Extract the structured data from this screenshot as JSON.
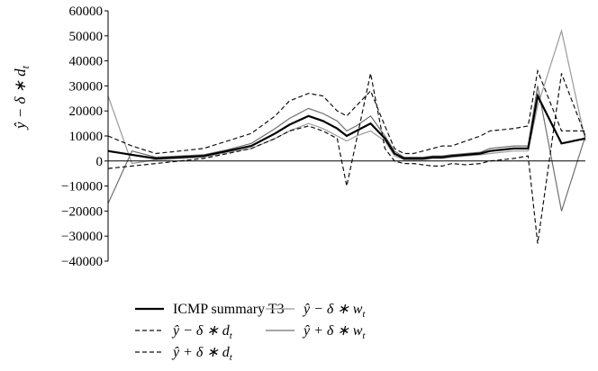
{
  "chart_data": {
    "type": "line",
    "title": "",
    "xlabel": "",
    "ylabel": "ŷ − δ ∗ d_t",
    "ylabel_parts": {
      "base": "ŷ − δ ∗ d",
      "sub": "t"
    },
    "ylim": [
      -40000,
      60000
    ],
    "yticks": [
      -40000,
      -30000,
      -20000,
      -10000,
      0,
      10000,
      20000,
      30000,
      40000,
      50000,
      60000
    ],
    "ytick_labels": [
      "−40000",
      "−30000",
      "−20000",
      "−10000",
      "0",
      "10000",
      "20000",
      "30000",
      "40000",
      "50000",
      "60000"
    ],
    "x_axis_labels": "none",
    "grid": false,
    "legend_position": "bottom",
    "series": [
      {
        "name": "ICMP summary T3",
        "style": "solid-thick",
        "color": "#000000",
        "x": [
          0,
          5,
          10,
          15,
          20,
          25,
          30,
          35,
          38,
          42,
          45,
          48,
          50,
          52,
          55,
          58,
          60,
          62,
          64,
          66,
          68,
          70,
          72,
          75,
          78,
          80,
          85,
          88,
          90,
          95,
          100
        ],
        "values": [
          4000,
          2500,
          1000,
          1500,
          2000,
          4000,
          6000,
          11000,
          14500,
          18000,
          16000,
          13000,
          10000,
          12000,
          15000,
          9000,
          3000,
          1000,
          1000,
          1000,
          1500,
          1500,
          2000,
          2500,
          3000,
          4000,
          5000,
          5000,
          26000,
          7000,
          9000
        ]
      },
      {
        "name": "ŷ − δ ∗ d_t",
        "label_parts": {
          "base": "ŷ − δ ∗ d",
          "sub": "t"
        },
        "style": "dashed",
        "color": "#111111",
        "x": [
          0,
          5,
          10,
          15,
          20,
          25,
          30,
          35,
          38,
          42,
          45,
          48,
          50,
          52,
          55,
          58,
          60,
          62,
          64,
          66,
          68,
          70,
          72,
          75,
          78,
          80,
          85,
          88,
          90,
          95,
          100
        ],
        "values": [
          -3000,
          -2000,
          -1000,
          0,
          1000,
          3000,
          5000,
          9000,
          12000,
          14000,
          12000,
          9000,
          -10000,
          8000,
          35000,
          5000,
          0,
          -1000,
          -1000,
          -1500,
          -2000,
          -2000,
          -1000,
          -1500,
          -1000,
          0,
          1000,
          2000,
          -33000,
          35000,
          10000
        ]
      },
      {
        "name": "ŷ + δ ∗ d_t",
        "label_parts": {
          "base": "ŷ + δ ∗ d",
          "sub": "t"
        },
        "style": "dashed",
        "color": "#111111",
        "x": [
          0,
          5,
          10,
          15,
          20,
          25,
          30,
          35,
          38,
          42,
          45,
          48,
          50,
          52,
          55,
          58,
          60,
          62,
          64,
          66,
          68,
          70,
          72,
          75,
          78,
          80,
          85,
          88,
          90,
          95,
          100
        ],
        "values": [
          10000,
          6000,
          3000,
          4000,
          5000,
          8000,
          11000,
          18000,
          24000,
          27000,
          26000,
          20000,
          18000,
          22000,
          28000,
          14000,
          5000,
          3000,
          3000,
          4000,
          5000,
          6000,
          6000,
          8000,
          10000,
          12000,
          13000,
          14000,
          36000,
          12000,
          12000
        ]
      },
      {
        "name": "ŷ − δ ∗ w_t",
        "label_parts": {
          "base": "ŷ − δ ∗ w",
          "sub": "t"
        },
        "style": "solid-thin",
        "color": "#9a9a9a",
        "x": [
          0,
          5,
          10,
          15,
          20,
          25,
          30,
          35,
          38,
          42,
          45,
          48,
          50,
          52,
          55,
          58,
          60,
          62,
          64,
          66,
          68,
          70,
          72,
          75,
          78,
          80,
          85,
          88,
          90,
          95,
          100
        ],
        "values": [
          26000,
          -1000,
          500,
          1000,
          1500,
          3500,
          5000,
          9000,
          12000,
          15000,
          13000,
          10000,
          8000,
          10000,
          12000,
          8000,
          2000,
          500,
          500,
          500,
          1000,
          1000,
          1500,
          2000,
          2500,
          3000,
          4000,
          4000,
          22000,
          52000,
          8000
        ]
      },
      {
        "name": "ŷ + δ ∗ w_t",
        "label_parts": {
          "base": "ŷ + δ ∗ w",
          "sub": "t"
        },
        "style": "solid-thin",
        "color": "#707070",
        "x": [
          0,
          5,
          10,
          15,
          20,
          25,
          30,
          35,
          38,
          42,
          45,
          48,
          50,
          52,
          55,
          58,
          60,
          62,
          64,
          66,
          68,
          70,
          72,
          75,
          78,
          80,
          85,
          88,
          90,
          95,
          100
        ],
        "values": [
          -17000,
          4000,
          1500,
          2000,
          2500,
          4500,
          7000,
          13000,
          17000,
          21000,
          19000,
          16000,
          12000,
          14000,
          18000,
          10000,
          4000,
          1500,
          1500,
          1500,
          2000,
          2000,
          2500,
          3000,
          3500,
          5000,
          6000,
          6000,
          30000,
          -20000,
          10000
        ]
      }
    ]
  }
}
